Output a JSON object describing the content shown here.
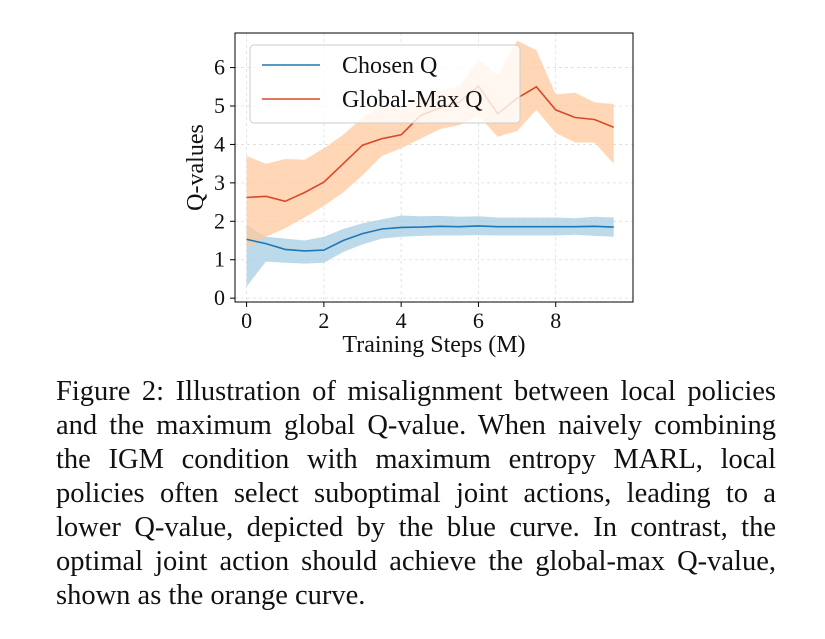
{
  "colors": {
    "chosen_line": "#1f77b4",
    "chosen_band": "#a6cee3",
    "global_line": "#d84a2c",
    "global_band": "#ffc99d",
    "grid": "#dddddd"
  },
  "chart_data": {
    "type": "line",
    "xlabel": "Training Steps (M)",
    "ylabel": "Q-values",
    "xlim": [
      -0.3,
      10.0
    ],
    "ylim": [
      -0.1,
      6.9
    ],
    "xticks": [
      0,
      2,
      4,
      6,
      8
    ],
    "yticks": [
      0,
      1,
      2,
      3,
      4,
      5,
      6
    ],
    "grid": true,
    "legend_position": "top-left",
    "series": [
      {
        "name": "Chosen Q",
        "color": "#1f77b4",
        "band_color": "#a6cee3",
        "x": [
          0,
          0.5,
          1,
          1.5,
          2,
          2.5,
          3,
          3.5,
          4,
          4.5,
          5,
          5.5,
          6,
          6.5,
          7,
          7.5,
          8,
          8.5,
          9,
          9.5
        ],
        "values": [
          1.53,
          1.42,
          1.27,
          1.23,
          1.25,
          1.5,
          1.68,
          1.8,
          1.84,
          1.85,
          1.87,
          1.86,
          1.88,
          1.86,
          1.86,
          1.86,
          1.86,
          1.86,
          1.87,
          1.85
        ],
        "lower": [
          0.3,
          0.95,
          0.92,
          0.9,
          0.92,
          1.2,
          1.4,
          1.55,
          1.6,
          1.62,
          1.63,
          1.63,
          1.64,
          1.63,
          1.63,
          1.63,
          1.63,
          1.65,
          1.62,
          1.6
        ],
        "upper": [
          1.9,
          1.6,
          1.55,
          1.5,
          1.6,
          1.8,
          1.95,
          2.05,
          2.15,
          2.13,
          2.14,
          2.12,
          2.13,
          2.1,
          2.1,
          2.1,
          2.1,
          2.08,
          2.12,
          2.1
        ]
      },
      {
        "name": "Global-Max Q",
        "color": "#d84a2c",
        "band_color": "#ffc99d",
        "x": [
          0,
          0.5,
          1,
          1.5,
          2,
          2.5,
          3,
          3.5,
          4,
          4.5,
          5,
          5.5,
          6,
          6.5,
          7,
          7.5,
          8,
          8.5,
          9,
          9.5
        ],
        "values": [
          2.62,
          2.65,
          2.52,
          2.75,
          3.02,
          3.5,
          3.98,
          4.15,
          4.25,
          4.75,
          4.95,
          5.1,
          5.52,
          4.8,
          5.2,
          5.5,
          4.9,
          4.7,
          4.65,
          4.45
        ],
        "lower": [
          1.3,
          1.6,
          1.82,
          2.1,
          2.4,
          2.75,
          3.2,
          3.7,
          3.9,
          4.15,
          4.4,
          4.5,
          4.75,
          4.2,
          4.35,
          4.9,
          4.3,
          4.05,
          4.05,
          3.5
        ],
        "upper": [
          3.7,
          3.5,
          3.62,
          3.6,
          3.9,
          4.25,
          4.7,
          5.0,
          4.9,
          5.2,
          5.4,
          5.5,
          6.2,
          5.8,
          6.7,
          6.45,
          5.3,
          5.35,
          5.1,
          5.05
        ]
      }
    ]
  },
  "caption": "Figure 2: Illustration of misalignment between local policies and the maximum global Q-value. When naively combining the IGM condition with maximum entropy MARL, local policies often select suboptimal joint actions, leading to a lower Q-value, depicted by the blue curve. In contrast, the optimal joint action should achieve the global-max Q-value, shown as the orange curve."
}
